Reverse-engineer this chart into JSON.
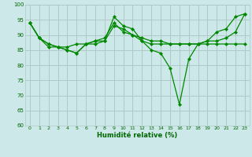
{
  "xlabel": "Humidité relative (%)",
  "xlim_min": -0.5,
  "xlim_max": 23.5,
  "ylim_min": 60,
  "ylim_max": 100,
  "yticks": [
    60,
    65,
    70,
    75,
    80,
    85,
    90,
    95,
    100
  ],
  "xticks": [
    0,
    1,
    2,
    3,
    4,
    5,
    6,
    7,
    8,
    9,
    10,
    11,
    12,
    13,
    14,
    15,
    16,
    17,
    18,
    19,
    20,
    21,
    22,
    23
  ],
  "bg_color": "#cce8e8",
  "grid_color": "#b0c8c8",
  "line_color": "#008800",
  "lines": [
    [
      94,
      89,
      86,
      86,
      85,
      84,
      87,
      88,
      88,
      96,
      93,
      92,
      88,
      85,
      84,
      79,
      67,
      82,
      87,
      88,
      91,
      92,
      96,
      97
    ],
    [
      94,
      89,
      87,
      86,
      86,
      87,
      87,
      88,
      89,
      94,
      91,
      90,
      89,
      88,
      88,
      87,
      87,
      87,
      87,
      88,
      88,
      89,
      91,
      97
    ],
    [
      94,
      89,
      87,
      86,
      85,
      84,
      87,
      87,
      88,
      93,
      92,
      90,
      88,
      87,
      87,
      87,
      87,
      87,
      87,
      87,
      87,
      87,
      87,
      87
    ]
  ]
}
